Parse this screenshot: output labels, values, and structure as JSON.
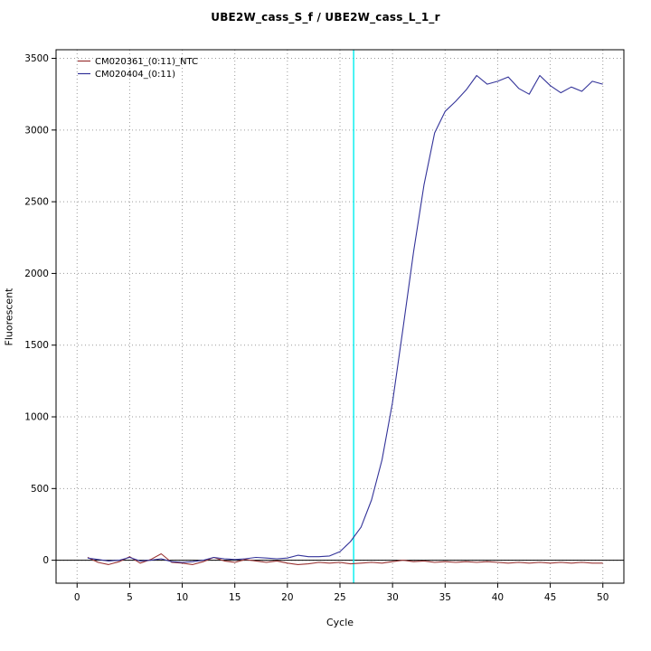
{
  "chart_data": {
    "type": "line",
    "title": "UBE2W_cass_S_f / UBE2W_cass_L_1_r",
    "xlabel": "Cycle",
    "ylabel": "Fluorescent",
    "xlim": [
      0,
      50
    ],
    "ylim": [
      0,
      3500
    ],
    "x_ticks": [
      0,
      5,
      10,
      15,
      20,
      25,
      30,
      35,
      40,
      45,
      50
    ],
    "y_ticks": [
      0,
      500,
      1000,
      1500,
      2000,
      2500,
      3000,
      3500
    ],
    "grid": "dotted",
    "grid_color": "#9a9a9a",
    "legend_position": "top-left",
    "threshold_line": {
      "x": 26.3,
      "color": "#00eeee"
    },
    "zero_line": {
      "y": 0,
      "color": "#000000"
    },
    "x": [
      1,
      2,
      3,
      4,
      5,
      6,
      7,
      8,
      9,
      10,
      11,
      12,
      13,
      14,
      15,
      16,
      17,
      18,
      19,
      20,
      21,
      22,
      23,
      24,
      25,
      26,
      27,
      28,
      29,
      30,
      31,
      32,
      33,
      34,
      35,
      36,
      37,
      38,
      39,
      40,
      41,
      42,
      43,
      44,
      45,
      46,
      47,
      48,
      49,
      50
    ],
    "series": [
      {
        "name": "CM020361_(0:11)_NTC",
        "color": "#993333",
        "values": [
          20,
          -15,
          -30,
          -10,
          25,
          -20,
          5,
          45,
          -15,
          -20,
          -30,
          -10,
          20,
          -5,
          -15,
          5,
          -5,
          -15,
          -5,
          -20,
          -30,
          -25,
          -15,
          -20,
          -15,
          -25,
          -20,
          -15,
          -20,
          -10,
          0,
          -10,
          -5,
          -15,
          -10,
          -15,
          -10,
          -15,
          -10,
          -15,
          -20,
          -15,
          -20,
          -15,
          -20,
          -15,
          -20,
          -15,
          -20,
          -20
        ]
      },
      {
        "name": "CM020404_(0:11)",
        "color": "#333399",
        "values": [
          15,
          5,
          -5,
          0,
          20,
          -5,
          0,
          10,
          -10,
          -15,
          -10,
          0,
          20,
          10,
          5,
          10,
          20,
          15,
          10,
          15,
          35,
          25,
          25,
          30,
          60,
          130,
          230,
          420,
          700,
          1100,
          1620,
          2150,
          2620,
          2980,
          3130,
          3200,
          3280,
          3380,
          3320,
          3340,
          3370,
          3290,
          3250,
          3380,
          3310,
          3260,
          3300,
          3270,
          3340,
          3320
        ]
      }
    ]
  }
}
